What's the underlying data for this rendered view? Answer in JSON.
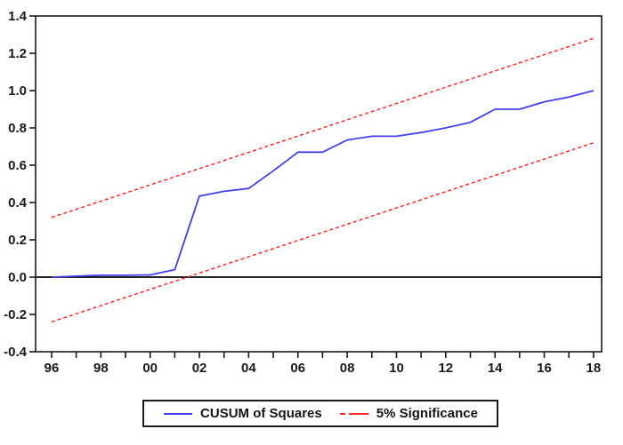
{
  "chart": {
    "background": "#ffffff",
    "axis_color": "#1a1a1a",
    "text_color": "#1a1a1a",
    "zero_line_color": "#000000",
    "cusum_color": "#4040ee",
    "band_color": "#ff2b2b"
  },
  "legend": {
    "items": [
      {
        "label": "CUSUM of Squares",
        "color": "#4040ee",
        "style": "solid"
      },
      {
        "label": "5% Significance",
        "color": "#ff2b2b",
        "style": "dashed"
      }
    ]
  },
  "chart_data": {
    "type": "line",
    "title": "",
    "xlabel": "",
    "ylabel": "",
    "x": [
      1996,
      1997,
      1998,
      1999,
      2000,
      2001,
      2002,
      2003,
      2004,
      2005,
      2006,
      2007,
      2008,
      2009,
      2010,
      2011,
      2012,
      2013,
      2014,
      2015,
      2016,
      2017,
      2018
    ],
    "x_tick_labels": [
      "96",
      "",
      "98",
      "",
      "00",
      "",
      "02",
      "",
      "04",
      "",
      "06",
      "",
      "08",
      "",
      "10",
      "",
      "12",
      "",
      "14",
      "",
      "16",
      "",
      "18"
    ],
    "y_tick_values": [
      -0.4,
      -0.2,
      0.0,
      0.2,
      0.4,
      0.6,
      0.8,
      1.0,
      1.2,
      1.4
    ],
    "y_tick_labels": [
      "-0.4",
      "-0.2",
      "0.0",
      "0.2",
      "0.4",
      "0.6",
      "0.8",
      "1.0",
      "1.2",
      "1.4"
    ],
    "ylim": [
      -0.4,
      1.4
    ],
    "xlim": [
      1995.35,
      2018.33
    ],
    "grid": false,
    "zero_line": true,
    "legend_position": "bottom",
    "series": [
      {
        "name": "CUSUM of Squares",
        "style": "solid",
        "color": "#4040ee",
        "values": [
          0.0,
          0.005,
          0.01,
          0.01,
          0.012,
          0.04,
          0.435,
          0.46,
          0.475,
          0.57,
          0.67,
          0.67,
          0.735,
          0.755,
          0.755,
          0.775,
          0.8,
          0.83,
          0.9,
          0.9,
          0.94,
          0.965,
          1.0
        ]
      },
      {
        "name": "5% Significance (upper band)",
        "style": "dashed",
        "color": "#ff2b2b",
        "x": [
          1996,
          2018
        ],
        "values": [
          0.32,
          1.28
        ]
      },
      {
        "name": "5% Significance (lower band)",
        "style": "dashed",
        "color": "#ff2b2b",
        "x": [
          1996,
          2018
        ],
        "values": [
          -0.24,
          0.72
        ]
      }
    ]
  }
}
